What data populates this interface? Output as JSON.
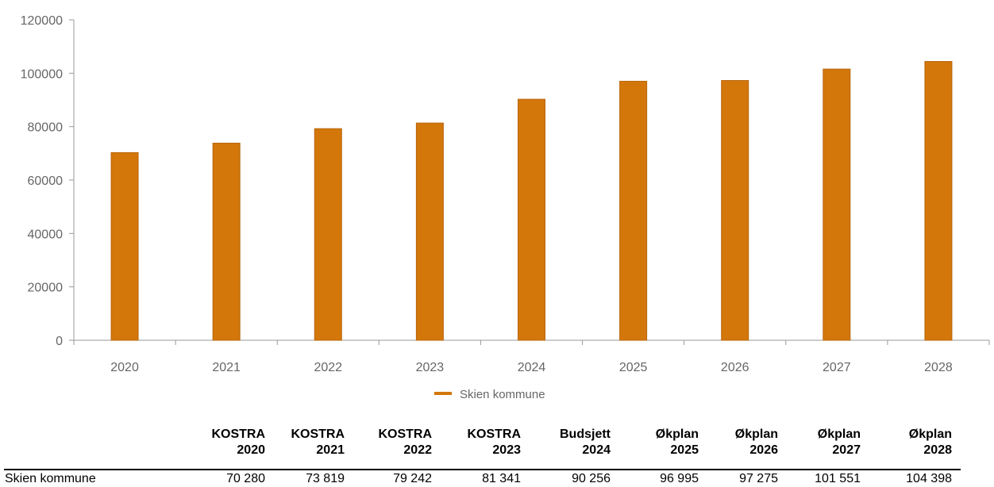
{
  "chart_data": {
    "type": "bar",
    "categories": [
      "2020",
      "2021",
      "2022",
      "2023",
      "2024",
      "2025",
      "2026",
      "2027",
      "2028"
    ],
    "series": [
      {
        "name": "Skien kommune",
        "values": [
          70280,
          73819,
          79242,
          81341,
          90256,
          96995,
          97275,
          101551,
          104398
        ],
        "color": "#d3770b"
      }
    ],
    "ylim": [
      0,
      120000
    ],
    "yticks": [
      "0",
      "20000",
      "40000",
      "60000",
      "80000",
      "100000",
      "120000"
    ],
    "title": "",
    "xlabel": "",
    "ylabel": "",
    "grid": false,
    "legend": "bottom-center"
  },
  "table": {
    "headers": [
      {
        "line1": "KOSTRA",
        "line2": "2020"
      },
      {
        "line1": "KOSTRA",
        "line2": "2021"
      },
      {
        "line1": "KOSTRA",
        "line2": "2022"
      },
      {
        "line1": "KOSTRA",
        "line2": "2023"
      },
      {
        "line1": "Budsjett",
        "line2": "2024"
      },
      {
        "line1": "Økplan",
        "line2": "2025"
      },
      {
        "line1": "Økplan",
        "line2": "2026"
      },
      {
        "line1": "Økplan",
        "line2": "2027"
      },
      {
        "line1": "Økplan",
        "line2": "2028"
      }
    ],
    "rows": [
      {
        "label": "Skien kommune",
        "values": [
          "70 280",
          "73 819",
          "79 242",
          "81 341",
          "90 256",
          "96 995",
          "97 275",
          "101 551",
          "104 398"
        ]
      }
    ]
  }
}
